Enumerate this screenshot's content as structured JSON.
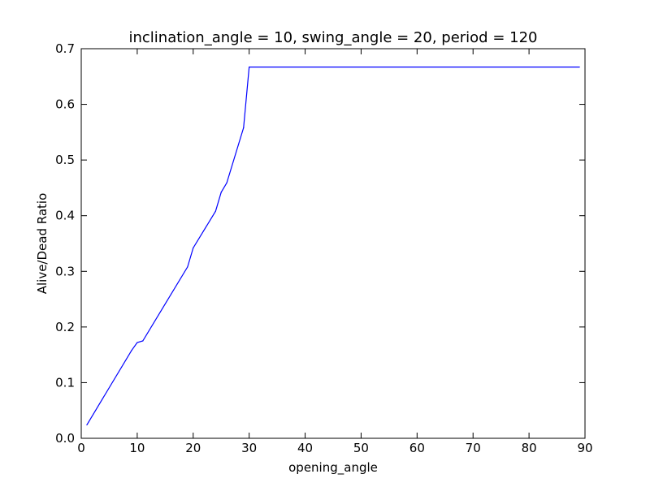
{
  "chart_data": {
    "type": "line",
    "title": "inclination_angle = 10, swing_angle = 20, period = 120",
    "xlabel": "opening_angle",
    "ylabel": "Alive/Dead Ratio",
    "xlim": [
      0,
      90
    ],
    "ylim": [
      0,
      0.7
    ],
    "xticks": [
      "0",
      "10",
      "20",
      "30",
      "40",
      "50",
      "60",
      "70",
      "80",
      "90"
    ],
    "yticks": [
      "0.0",
      "0.1",
      "0.2",
      "0.3",
      "0.4",
      "0.5",
      "0.6",
      "0.7"
    ],
    "grid": false,
    "series": [
      {
        "color": "#0000ff",
        "x": [
          1,
          9,
          10,
          11,
          19,
          20,
          24,
          25,
          26,
          29,
          30,
          89
        ],
        "y": [
          0.024,
          0.158,
          0.172,
          0.175,
          0.308,
          0.342,
          0.408,
          0.442,
          0.459,
          0.558,
          0.667,
          0.667
        ]
      }
    ]
  }
}
